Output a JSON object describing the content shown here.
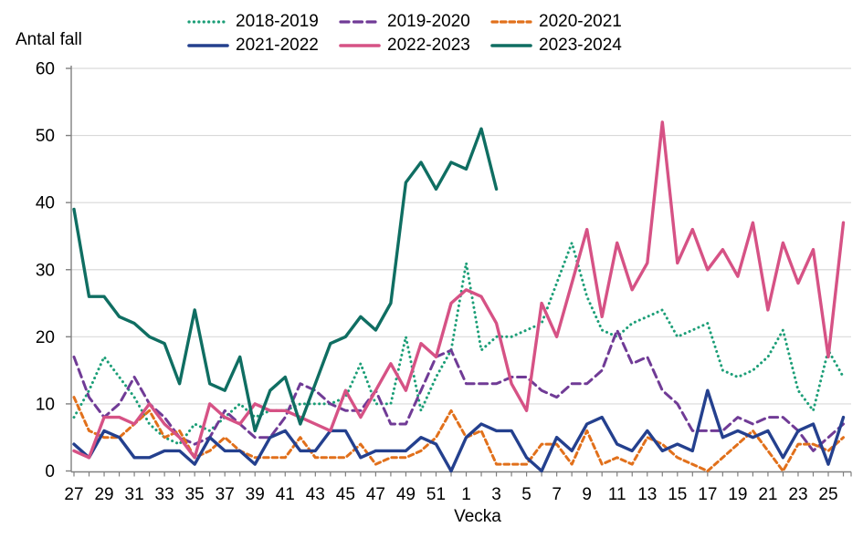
{
  "page": {
    "background": "#ffffff",
    "text_color": "#000000",
    "grid_color": "#d9d9d9",
    "axis_color": "#808080"
  },
  "y_axis": {
    "title": "Antal fall",
    "ticks": [
      0,
      10,
      20,
      30,
      40,
      50,
      60
    ],
    "max": 60
  },
  "x_axis": {
    "title": "Vecka",
    "tick_labels": [
      "27",
      "29",
      "31",
      "33",
      "35",
      "37",
      "39",
      "41",
      "43",
      "45",
      "47",
      "49",
      "51",
      "1",
      "3",
      "5",
      "7",
      "9",
      "11",
      "13",
      "15",
      "17",
      "19",
      "21",
      "23",
      "25"
    ]
  },
  "chart_data": {
    "type": "line",
    "title": "",
    "xlabel": "Vecka",
    "ylabel": "Antal fall",
    "ylim": [
      0,
      60
    ],
    "grid": "horizontal",
    "legend_position": "top",
    "x_weeks": [
      27,
      28,
      29,
      30,
      31,
      32,
      33,
      34,
      35,
      36,
      37,
      38,
      39,
      40,
      41,
      42,
      43,
      44,
      45,
      46,
      47,
      48,
      49,
      50,
      51,
      52,
      1,
      2,
      3,
      4,
      5,
      6,
      7,
      8,
      9,
      10,
      11,
      12,
      13,
      14,
      15,
      16,
      17,
      18,
      19,
      20,
      21,
      22,
      23,
      24,
      25,
      26
    ],
    "series": [
      {
        "name": "2018-2019",
        "color": "#1b9e77",
        "line_style": "dotted",
        "values": [
          8,
          12,
          17,
          14,
          11,
          7,
          5,
          4,
          7,
          6,
          8,
          10,
          8,
          9,
          9,
          10,
          10,
          10,
          11,
          16,
          10,
          10,
          20,
          9,
          14,
          18,
          31,
          18,
          20,
          20,
          21,
          22,
          28,
          34,
          26,
          21,
          20,
          22,
          23,
          24,
          20,
          21,
          22,
          15,
          14,
          15,
          17,
          21,
          12,
          9,
          18,
          14
        ]
      },
      {
        "name": "2019-2020",
        "color": "#703b96",
        "line_style": "dashed-long",
        "values": [
          17,
          11,
          8,
          10,
          14,
          10,
          8,
          5,
          4,
          5,
          9,
          7,
          5,
          5,
          8,
          13,
          12,
          10,
          9,
          9,
          12,
          7,
          7,
          12,
          17,
          18,
          13,
          13,
          13,
          14,
          14,
          12,
          11,
          13,
          13,
          15,
          21,
          16,
          17,
          12,
          10,
          6,
          6,
          6,
          8,
          7,
          8,
          8,
          6,
          3,
          5,
          7
        ]
      },
      {
        "name": "2020-2021",
        "color": "#e1701b",
        "line_style": "dashed-short",
        "values": [
          11,
          6,
          5,
          5,
          7,
          9,
          5,
          6,
          2,
          3,
          5,
          3,
          2,
          2,
          2,
          5,
          2,
          2,
          2,
          4,
          1,
          2,
          2,
          3,
          5,
          9,
          5,
          6,
          1,
          1,
          1,
          4,
          4,
          1,
          6,
          1,
          2,
          1,
          5,
          4,
          2,
          1,
          0,
          2,
          4,
          6,
          3,
          0,
          4,
          4,
          3,
          5
        ]
      },
      {
        "name": "2021-2022",
        "color": "#24408e",
        "line_style": "solid",
        "values": [
          4,
          2,
          6,
          5,
          2,
          2,
          3,
          3,
          1,
          5,
          3,
          3,
          1,
          5,
          6,
          3,
          3,
          6,
          6,
          2,
          3,
          3,
          3,
          5,
          4,
          0,
          5,
          7,
          6,
          6,
          2,
          0,
          5,
          3,
          7,
          8,
          4,
          3,
          6,
          3,
          4,
          3,
          12,
          5,
          6,
          5,
          6,
          2,
          6,
          7,
          1,
          8
        ]
      },
      {
        "name": "2022-2023",
        "color": "#d65285",
        "line_style": "solid",
        "values": [
          3,
          2,
          8,
          8,
          7,
          10,
          7,
          5,
          2,
          10,
          8,
          7,
          10,
          9,
          9,
          8,
          7,
          6,
          12,
          8,
          12,
          16,
          12,
          19,
          17,
          25,
          27,
          26,
          22,
          13,
          9,
          25,
          20,
          28,
          36,
          23,
          34,
          27,
          31,
          52,
          31,
          36,
          30,
          33,
          29,
          37,
          24,
          34,
          28,
          33,
          17,
          37
        ]
      },
      {
        "name": "2023-2024",
        "color": "#0f6e62",
        "line_style": "solid",
        "values": [
          39,
          26,
          26,
          23,
          22,
          20,
          19,
          13,
          24,
          13,
          12,
          17,
          6,
          12,
          14,
          7,
          13,
          19,
          20,
          23,
          21,
          25,
          43,
          46,
          42,
          46,
          45,
          51,
          42
        ]
      }
    ]
  }
}
